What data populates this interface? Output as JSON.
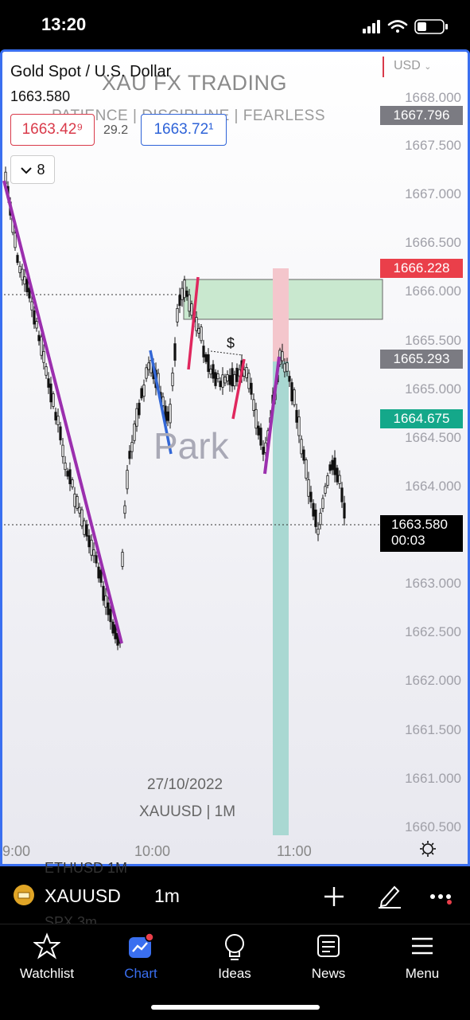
{
  "status_bar": {
    "time": "13:20"
  },
  "chart": {
    "symbol_title": "Gold Spot / U.S. Dollar",
    "last_price": "1663.580",
    "watermark_title": "XAU FX TRADING",
    "watermark_sub": "PATIENCE  |  DISCIPLINE  |  FEARLESS",
    "bid": "1663.42⁹",
    "spread": "29.2",
    "ask": "1663.72¹",
    "indicators_toggle": "8",
    "watermark_name": "Park",
    "date_label": "27/10/2022",
    "symbol_interval_label": "XAUUSD | 1M",
    "currency": "USD",
    "dollar_annotation": "$",
    "price_axis": [
      "1668.000",
      "1667.500",
      "1667.000",
      "1666.500",
      "1666.000",
      "1665.500",
      "1665.000",
      "1664.500",
      "1664.000",
      "1663.000",
      "1662.500",
      "1662.000",
      "1661.500",
      "1661.000",
      "1660.500"
    ],
    "tags": {
      "top": "1667.796",
      "red": "1666.228",
      "grey": "1665.293",
      "green": "1664.675",
      "current": "1663.580",
      "countdown": "00:03"
    },
    "time_axis": [
      "9:00",
      "10:00",
      "11:00"
    ],
    "colors": {
      "up": "#111111",
      "zone_green": "#c9e8cf",
      "zone_red": "#f4c6cc",
      "zone_teal": "#a9d8d2",
      "purple": "#9b2fae",
      "pink": "#e0275e",
      "blue": "#3367d6"
    }
  },
  "toolbar": {
    "symbol": "XAUUSD",
    "interval": "1m",
    "ghost_above": "ETHUSD     1M",
    "ghost_below": "SPX        3m"
  },
  "tabs": [
    {
      "label": "Watchlist",
      "icon": "star-icon"
    },
    {
      "label": "Chart",
      "icon": "chart-icon"
    },
    {
      "label": "Ideas",
      "icon": "lightbulb-icon"
    },
    {
      "label": "News",
      "icon": "news-icon"
    },
    {
      "label": "Menu",
      "icon": "menu-icon"
    }
  ]
}
